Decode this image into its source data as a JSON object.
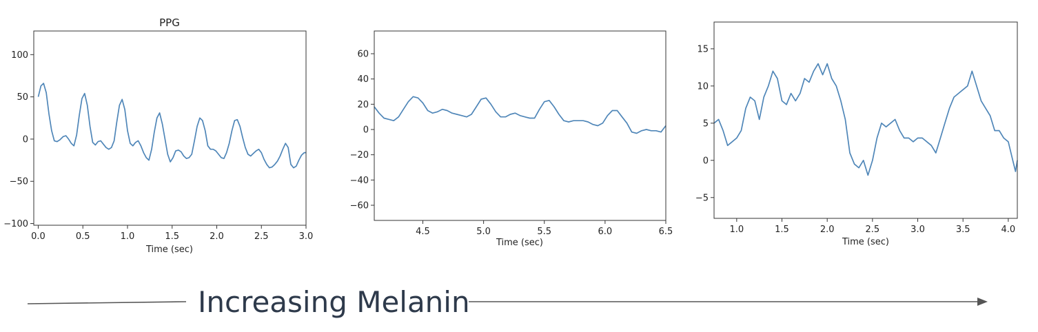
{
  "caption": {
    "text": "Increasing Melanin",
    "arrow_color": "#555555",
    "text_color": "#2e3a4b"
  },
  "chart_data": [
    {
      "type": "line",
      "title": "PPG",
      "xlabel": "Time (sec)",
      "ylabel": "",
      "xlim": [
        -0.05,
        3.0
      ],
      "ylim": [
        -102,
        128
      ],
      "xticks": [
        "0.0",
        "0.5",
        "1.0",
        "1.5",
        "2.0",
        "2.5",
        "3.0"
      ],
      "xtick_values": [
        0,
        0.5,
        1.0,
        1.5,
        2.0,
        2.5,
        3.0
      ],
      "yticks": [
        "−100",
        "−50",
        "0",
        "50",
        "100"
      ],
      "ytick_values": [
        -100,
        -50,
        0,
        50,
        100
      ],
      "series": [
        {
          "color": "#4f86b8",
          "x": [
            0.0,
            0.03,
            0.06,
            0.09,
            0.12,
            0.15,
            0.18,
            0.21,
            0.24,
            0.28,
            0.31,
            0.34,
            0.37,
            0.4,
            0.43,
            0.46,
            0.49,
            0.52,
            0.55,
            0.58,
            0.61,
            0.64,
            0.67,
            0.7,
            0.73,
            0.76,
            0.79,
            0.82,
            0.85,
            0.88,
            0.91,
            0.94,
            0.97,
            1.0,
            1.03,
            1.06,
            1.09,
            1.12,
            1.15,
            1.18,
            1.21,
            1.24,
            1.27,
            1.3,
            1.33,
            1.36,
            1.39,
            1.42,
            1.45,
            1.48,
            1.51,
            1.54,
            1.57,
            1.6,
            1.63,
            1.66,
            1.69,
            1.72,
            1.75,
            1.78,
            1.81,
            1.84,
            1.87,
            1.9,
            1.93,
            1.96,
            1.99,
            2.02,
            2.05,
            2.08,
            2.11,
            2.14,
            2.17,
            2.2,
            2.23,
            2.26,
            2.29,
            2.32,
            2.35,
            2.38,
            2.41,
            2.44,
            2.47,
            2.5,
            2.53,
            2.56,
            2.59,
            2.62,
            2.65,
            2.68,
            2.71,
            2.74,
            2.77,
            2.8,
            2.83,
            2.86,
            2.89,
            2.92,
            2.95,
            2.98,
            3.0
          ],
          "y": [
            50,
            63,
            66,
            55,
            30,
            10,
            -2,
            -3,
            -1,
            3,
            4,
            0,
            -5,
            -8,
            5,
            28,
            48,
            54,
            40,
            15,
            -4,
            -7,
            -3,
            -2,
            -6,
            -10,
            -12,
            -10,
            -2,
            20,
            40,
            47,
            35,
            10,
            -5,
            -8,
            -4,
            -2,
            -8,
            -16,
            -22,
            -25,
            -12,
            8,
            25,
            31,
            18,
            0,
            -18,
            -27,
            -22,
            -14,
            -13,
            -15,
            -20,
            -23,
            -22,
            -18,
            -2,
            15,
            25,
            22,
            10,
            -8,
            -12,
            -12,
            -14,
            -18,
            -22,
            -23,
            -16,
            -5,
            10,
            22,
            23,
            15,
            2,
            -10,
            -18,
            -20,
            -17,
            -14,
            -12,
            -16,
            -24,
            -30,
            -34,
            -33,
            -30,
            -26,
            -20,
            -12,
            -5,
            -10,
            -30,
            -34,
            -32,
            -25,
            -19,
            -16,
            -16
          ]
        }
      ]
    },
    {
      "type": "line",
      "title": "",
      "xlabel": "Time (sec)",
      "ylabel": "",
      "xlim": [
        4.1,
        6.5
      ],
      "ylim": [
        -72,
        78
      ],
      "xticks": [
        "4.5",
        "5.0",
        "5.5",
        "6.0",
        "6.5"
      ],
      "xtick_values": [
        4.5,
        5.0,
        5.5,
        6.0,
        6.5
      ],
      "yticks": [
        "−60",
        "−40",
        "−20",
        "0",
        "20",
        "40",
        "60"
      ],
      "ytick_values": [
        -60,
        -40,
        -20,
        0,
        20,
        40,
        60
      ],
      "series": [
        {
          "color": "#4f86b8",
          "x": [
            4.1,
            4.14,
            4.18,
            4.22,
            4.26,
            4.3,
            4.34,
            4.38,
            4.42,
            4.46,
            4.5,
            4.54,
            4.58,
            4.62,
            4.66,
            4.7,
            4.74,
            4.78,
            4.82,
            4.86,
            4.9,
            4.94,
            4.98,
            5.02,
            5.06,
            5.1,
            5.14,
            5.18,
            5.22,
            5.26,
            5.3,
            5.34,
            5.38,
            5.42,
            5.46,
            5.5,
            5.54,
            5.58,
            5.62,
            5.66,
            5.7,
            5.74,
            5.78,
            5.82,
            5.86,
            5.9,
            5.94,
            5.98,
            6.02,
            6.06,
            6.1,
            6.14,
            6.18,
            6.22,
            6.26,
            6.3,
            6.34,
            6.38,
            6.42,
            6.46,
            6.5
          ],
          "y": [
            18,
            13,
            9,
            8,
            7,
            10,
            16,
            22,
            26,
            25,
            21,
            15,
            13,
            14,
            16,
            15,
            13,
            12,
            11,
            10,
            12,
            18,
            24,
            25,
            20,
            14,
            10,
            10,
            12,
            13,
            11,
            10,
            9,
            9,
            16,
            22,
            23,
            18,
            12,
            7,
            6,
            7,
            7,
            7,
            6,
            4,
            3,
            5,
            11,
            15,
            15,
            10,
            5,
            -2,
            -3,
            -1,
            0,
            -1,
            -1,
            -2,
            3
          ]
        }
      ]
    },
    {
      "type": "line",
      "title": "",
      "xlabel": "Time (sec)",
      "ylabel": "",
      "xlim": [
        0.75,
        4.1
      ],
      "ylim": [
        -7.8,
        18.6
      ],
      "xticks": [
        "1.0",
        "1.5",
        "2.0",
        "2.5",
        "3.0",
        "3.5",
        "4.0"
      ],
      "xtick_values": [
        1.0,
        1.5,
        2.0,
        2.5,
        3.0,
        3.5,
        4.0
      ],
      "yticks": [
        "−5",
        "0",
        "5",
        "10",
        "15"
      ],
      "ytick_values": [
        -5,
        0,
        5,
        10,
        15
      ],
      "series": [
        {
          "color": "#4f86b8",
          "x": [
            0.75,
            0.8,
            0.85,
            0.9,
            0.95,
            1.0,
            1.05,
            1.1,
            1.15,
            1.2,
            1.25,
            1.3,
            1.35,
            1.4,
            1.45,
            1.5,
            1.55,
            1.6,
            1.65,
            1.7,
            1.75,
            1.8,
            1.85,
            1.9,
            1.95,
            2.0,
            2.05,
            2.1,
            2.15,
            2.2,
            2.25,
            2.3,
            2.35,
            2.4,
            2.45,
            2.5,
            2.55,
            2.6,
            2.65,
            2.7,
            2.75,
            2.8,
            2.85,
            2.9,
            2.95,
            3.0,
            3.05,
            3.1,
            3.15,
            3.2,
            3.25,
            3.3,
            3.35,
            3.4,
            3.45,
            3.5,
            3.55,
            3.6,
            3.65,
            3.7,
            3.75,
            3.8,
            3.85,
            3.9,
            3.95,
            4.0,
            4.05,
            4.08,
            4.1
          ],
          "y": [
            5,
            5.5,
            4,
            2,
            2.5,
            3,
            4,
            7,
            8.5,
            8,
            5.5,
            8.5,
            10,
            12,
            11,
            8,
            7.5,
            9,
            8,
            9,
            11,
            10.5,
            12,
            13,
            11.5,
            13,
            11,
            10,
            8,
            5.5,
            1,
            -0.5,
            -1,
            0,
            -2,
            0,
            3,
            5,
            4.5,
            5,
            5.5,
            4,
            3,
            3,
            2.5,
            3,
            3,
            2.5,
            2,
            1,
            3,
            5,
            7,
            8.5,
            9,
            9.5,
            10,
            12,
            10,
            8,
            7,
            6,
            4,
            4,
            3,
            2.5,
            0,
            -1.5,
            0
          ]
        }
      ]
    }
  ]
}
